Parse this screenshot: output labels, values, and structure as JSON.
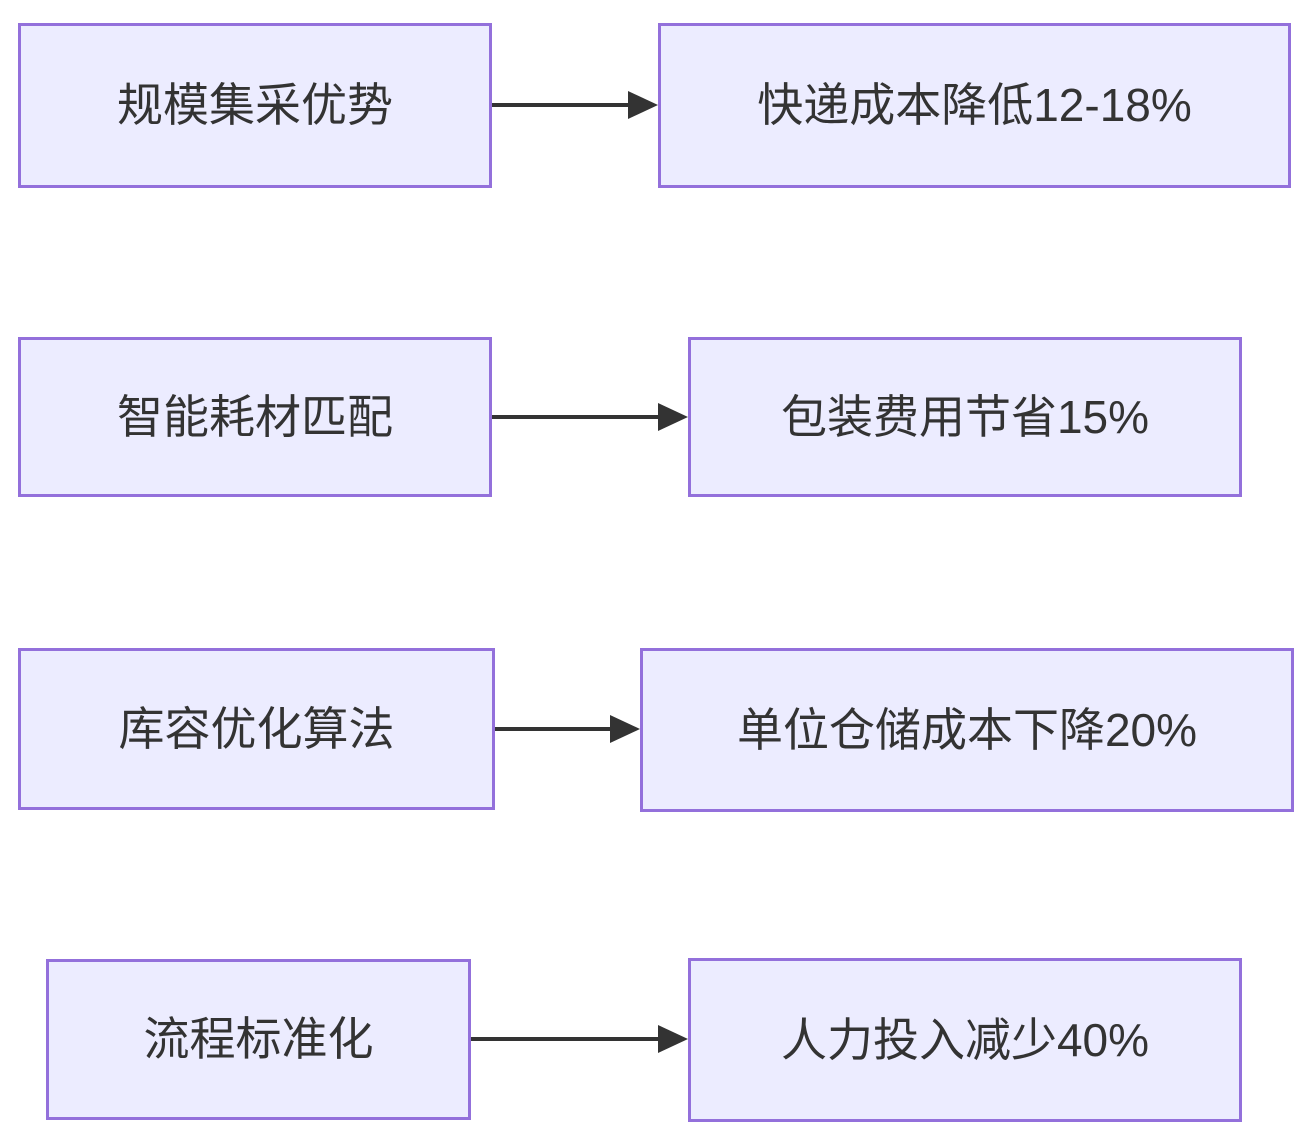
{
  "diagram": {
    "type": "flowchart",
    "direction": "left-to-right",
    "colors": {
      "background": "#ffffff",
      "node_fill": "#ECECFF",
      "node_border": "#9370DB",
      "text": "#333333",
      "arrow": "#333333"
    },
    "rows": [
      {
        "source": "规模集采优势",
        "result": "快递成本降低12-18%"
      },
      {
        "source": "智能耗材匹配",
        "result": "包装费用节省15%"
      },
      {
        "source": "库容优化算法",
        "result": "单位仓储成本下降20%"
      },
      {
        "source": "流程标准化",
        "result": "人力投入减少40%"
      }
    ]
  }
}
